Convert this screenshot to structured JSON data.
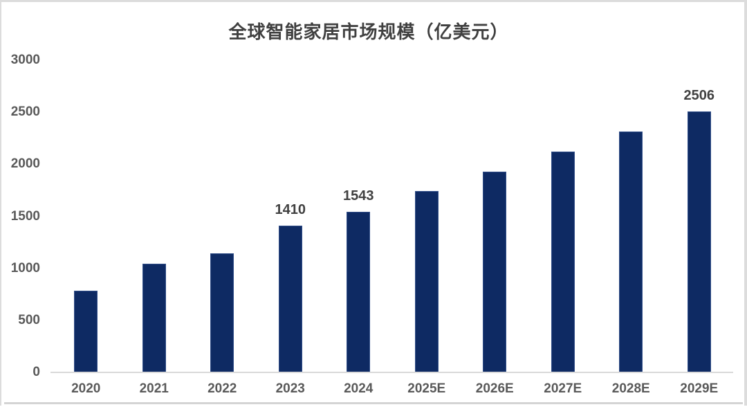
{
  "chart_data": {
    "type": "bar",
    "title": "全球智能家居市场规模（亿美元）",
    "categories": [
      "2020",
      "2021",
      "2022",
      "2023",
      "2024",
      "2025E",
      "2026E",
      "2027E",
      "2028E",
      "2029E"
    ],
    "values": [
      788,
      1043,
      1144,
      1410,
      1543,
      1740,
      1930,
      2123,
      2313,
      2506
    ],
    "bar_labels": [
      "",
      "",
      "",
      "1410",
      "1543",
      "",
      "",
      "",
      "",
      "2506"
    ],
    "xlabel": "",
    "ylabel": "",
    "ylim": [
      0,
      3000
    ],
    "yticks": [
      0,
      500,
      1000,
      1500,
      2000,
      2500,
      3000
    ],
    "grid": false,
    "legend": null,
    "colors": {
      "bar": "#0e2a63",
      "title": "#404040",
      "axis_labels": "#595959",
      "value_labels": "#404040",
      "axis_line": "#d9d9d9",
      "card_border": "#dcdcdc",
      "background": "#ffffff"
    }
  }
}
